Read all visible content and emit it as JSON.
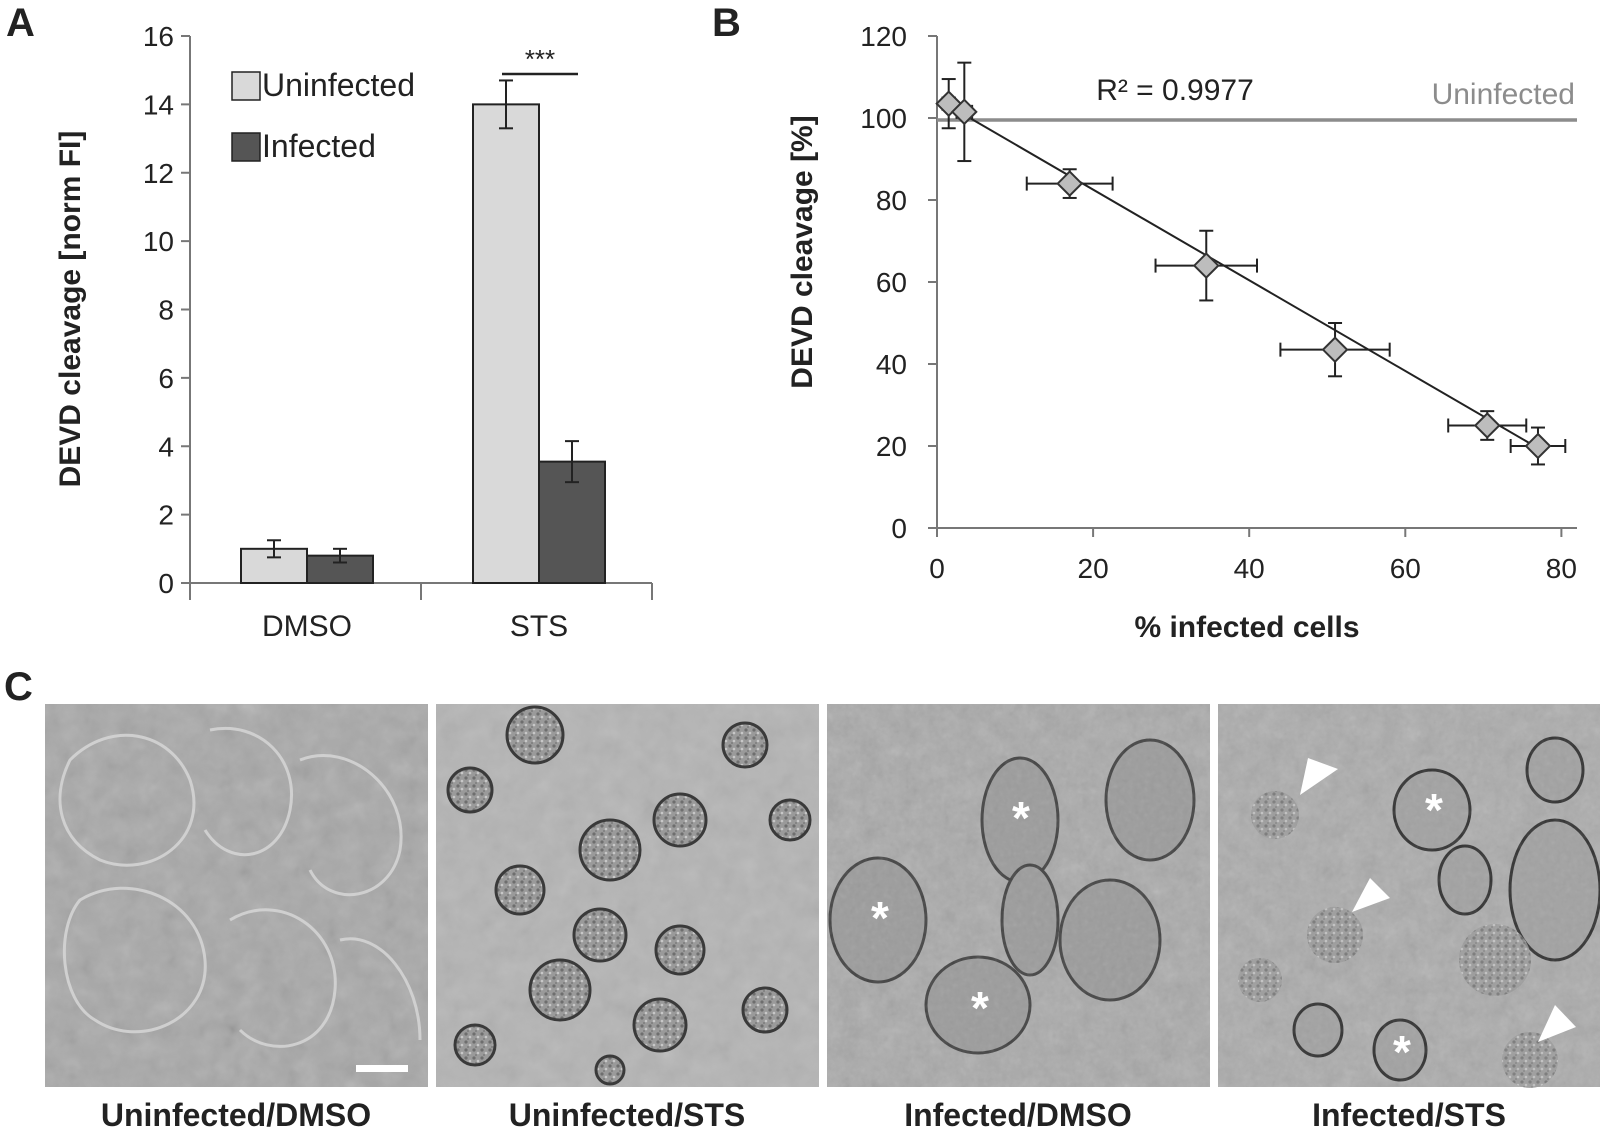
{
  "panels": {
    "a": "A",
    "b": "B",
    "c": "C"
  },
  "chart_data": [
    {
      "type": "bar",
      "ylabel": "DEVD cleavage [norm FI]",
      "xlabel": "",
      "ylim": [
        0,
        16
      ],
      "yticks": [
        0,
        2,
        4,
        6,
        8,
        10,
        12,
        14,
        16
      ],
      "categories": [
        "DMSO",
        "STS"
      ],
      "series": [
        {
          "name": "Uninfected",
          "values": [
            1.0,
            14.0
          ],
          "errors": [
            0.25,
            0.7
          ],
          "color": "#d9d9d9"
        },
        {
          "name": "Infected",
          "values": [
            0.8,
            3.55
          ],
          "errors": [
            0.2,
            0.6
          ],
          "color": "#555555"
        }
      ],
      "annotation": "***",
      "legend_position": "top-left",
      "grid": false
    },
    {
      "type": "scatter",
      "ylabel": "DEVD cleavage  [%]",
      "xlabel": "% infected cells",
      "xlim": [
        0,
        82
      ],
      "ylim": [
        0,
        120
      ],
      "xticks": [
        0,
        20,
        40,
        60,
        80
      ],
      "yticks": [
        0,
        20,
        40,
        60,
        80,
        100,
        120
      ],
      "points": [
        {
          "x": 1.5,
          "y": 103.5,
          "xerr": 0.8,
          "yerr": 6.0
        },
        {
          "x": 3.5,
          "y": 101.5,
          "xerr": 1.0,
          "yerr": 12.0
        },
        {
          "x": 17.0,
          "y": 84.0,
          "xerr": 5.5,
          "yerr": 3.5
        },
        {
          "x": 34.5,
          "y": 64.0,
          "xerr": 6.5,
          "yerr": 8.5
        },
        {
          "x": 51.0,
          "y": 43.5,
          "xerr": 7.0,
          "yerr": 6.5
        },
        {
          "x": 70.5,
          "y": 25.0,
          "xerr": 5.0,
          "yerr": 3.5
        },
        {
          "x": 77.0,
          "y": 20.0,
          "xerr": 3.5,
          "yerr": 4.5
        }
      ],
      "fit_line": {
        "x": [
          1.5,
          77.0
        ],
        "y": [
          103.0,
          19.5
        ]
      },
      "r_squared_label": "R² = 0.9977",
      "reference_line": {
        "y": 99.5,
        "label": "Uninfected",
        "color": "#8c8c8c"
      },
      "marker_color": "#bdbdbd",
      "grid": false
    }
  ],
  "micrographs": [
    {
      "label": "Uninfected/DMSO",
      "scale_bar": true
    },
    {
      "label": "Uninfected/STS",
      "scale_bar": false
    },
    {
      "label": "Infected/DMSO",
      "asterisks": 3
    },
    {
      "label": "Infected/STS",
      "asterisks": 2,
      "arrowheads": 3
    }
  ]
}
